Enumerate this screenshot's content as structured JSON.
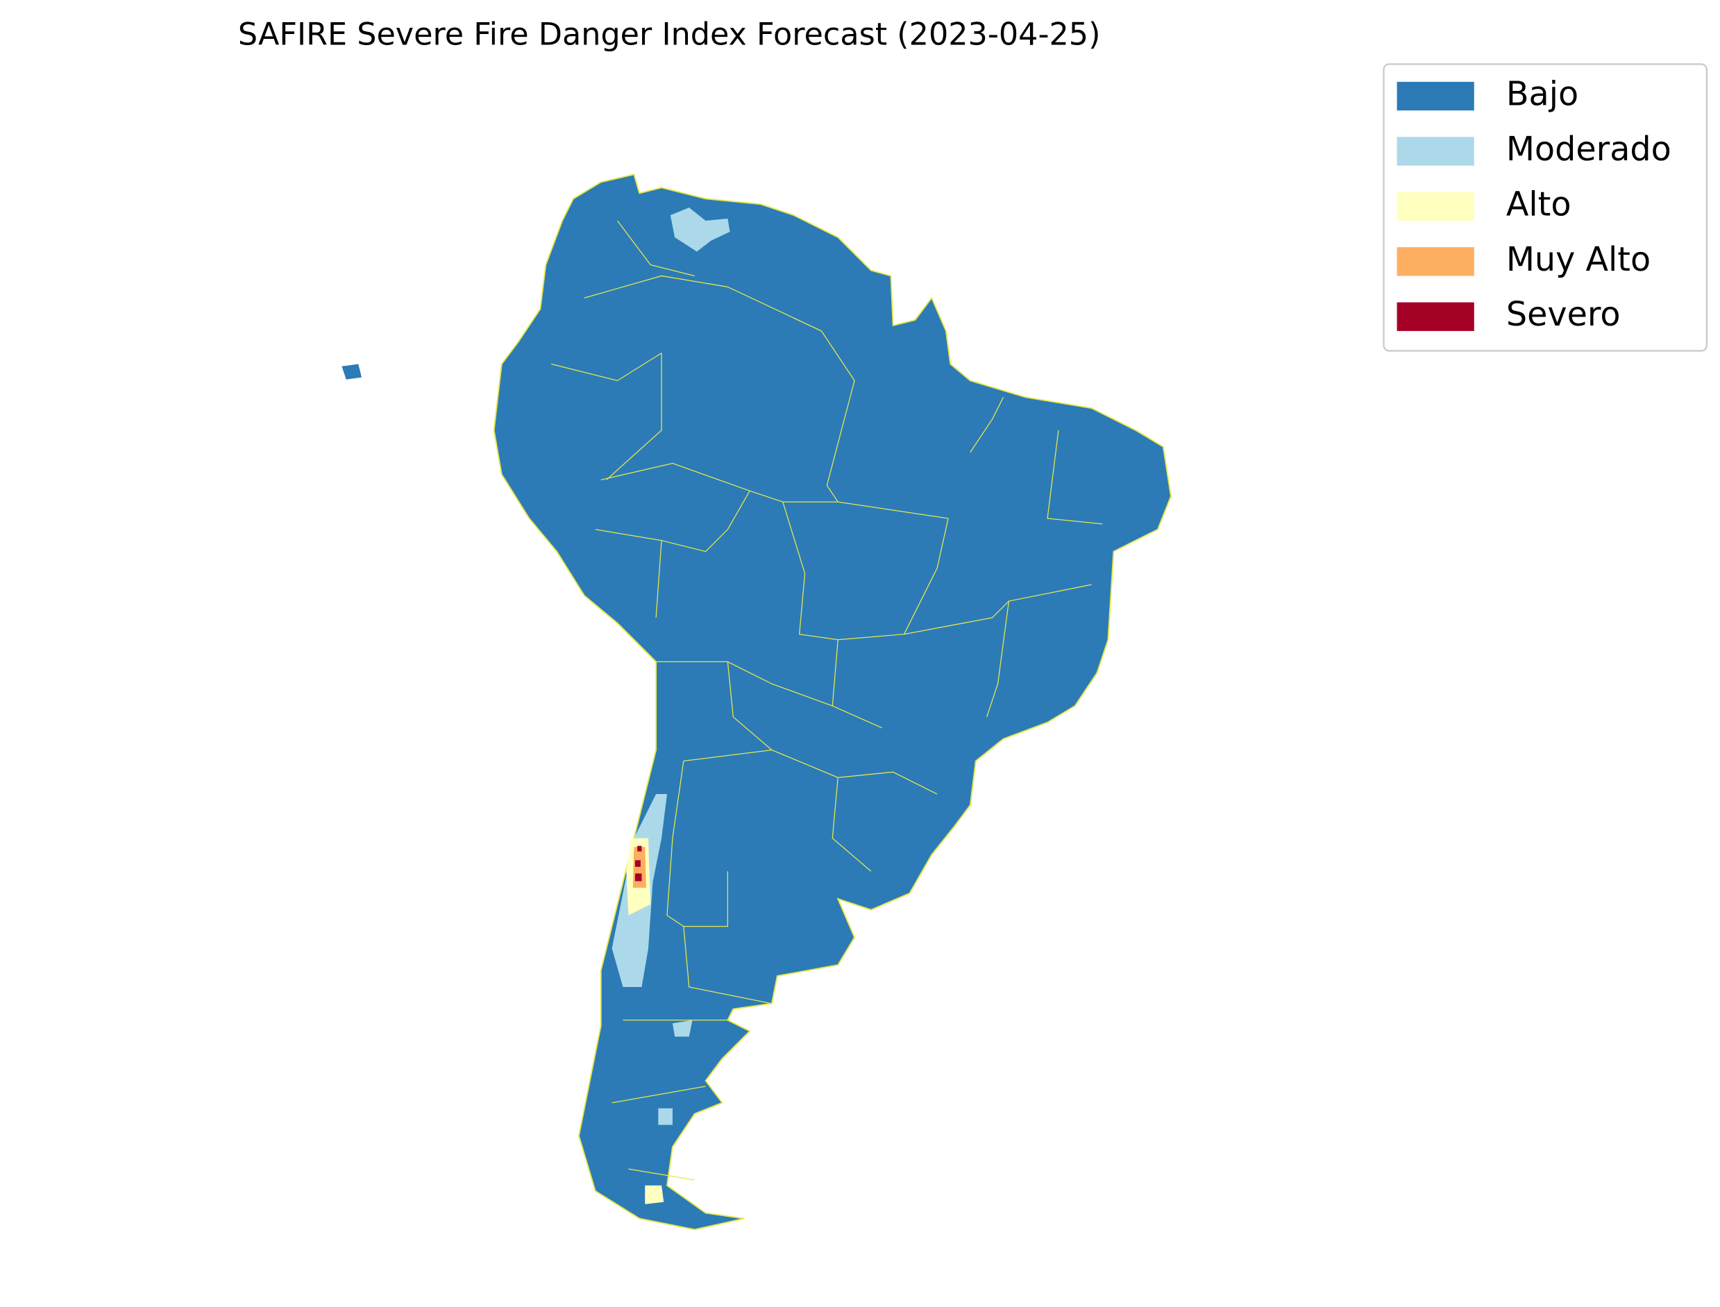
{
  "title": "SAFIRE Severe Fire Danger Index Forecast (2023-04-25)",
  "legend": {
    "items": [
      {
        "label": "Bajo",
        "color": "#2c7bb6"
      },
      {
        "label": "Moderado",
        "color": "#abd9e9"
      },
      {
        "label": "Alto",
        "color": "#ffffbf"
      },
      {
        "label": "Muy Alto",
        "color": "#fdae61"
      },
      {
        "label": "Severo",
        "color": "#a50026"
      }
    ]
  }
}
